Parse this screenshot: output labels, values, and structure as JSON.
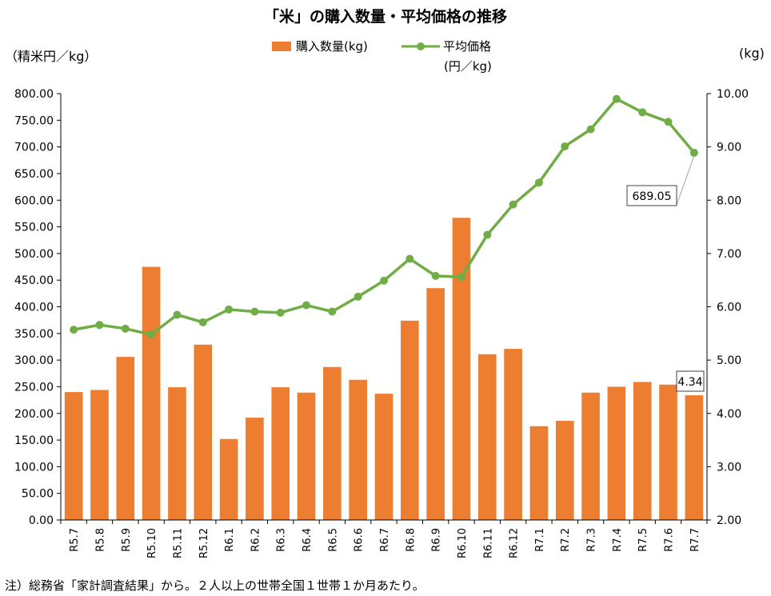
{
  "title": "「米」の購入数量・平均価格の推移",
  "left_axis_unit": "（精米円／kg）",
  "right_axis_unit": "(kg)",
  "legend": {
    "bar_label": "購入数量(kg)",
    "line_label": "平均価格",
    "line_unit": "(円／kg)"
  },
  "footnote": "注）総務省「家計調査結果」から。２人以上の世帯全国１世帯１か月あたり。",
  "colors": {
    "bar": "#ED7D31",
    "line": "#70AD47"
  },
  "chart_data": {
    "type": "bar+line",
    "categories": [
      "R5.7",
      "R5.8",
      "R5.9",
      "R5.10",
      "R5.11",
      "R5.12",
      "R6.1",
      "R6.2",
      "R6.3",
      "R6.4",
      "R6.5",
      "R6.6",
      "R6.7",
      "R6.8",
      "R6.9",
      "R6.10",
      "R6.11",
      "R6.12",
      "R7.1",
      "R7.2",
      "R7.3",
      "R7.4",
      "R7.5",
      "R7.6",
      "R7.7"
    ],
    "series": [
      {
        "name": "購入数量(kg)",
        "type": "bar",
        "axis": "right",
        "values": [
          4.4,
          4.44,
          5.06,
          6.75,
          4.49,
          5.29,
          3.52,
          3.92,
          4.49,
          4.39,
          4.87,
          4.63,
          4.37,
          5.74,
          6.35,
          7.67,
          5.11,
          5.21,
          3.76,
          3.86,
          4.39,
          4.5,
          4.59,
          4.54,
          4.34
        ]
      },
      {
        "name": "平均価格(円／kg)",
        "type": "line",
        "axis": "left",
        "values": [
          357,
          366,
          359,
          348,
          385,
          371,
          395,
          391,
          389,
          403,
          391,
          419,
          449,
          490,
          458,
          456,
          535,
          592,
          633,
          701,
          733,
          790,
          765,
          747,
          689.05
        ]
      }
    ],
    "left_axis": {
      "min": 0,
      "max": 800,
      "step": 50,
      "ticks": [
        "0.00",
        "50.00",
        "100.00",
        "150.00",
        "200.00",
        "250.00",
        "300.00",
        "350.00",
        "400.00",
        "450.00",
        "500.00",
        "550.00",
        "600.00",
        "650.00",
        "700.00",
        "750.00",
        "800.00"
      ]
    },
    "right_axis": {
      "min": 2,
      "max": 10,
      "step": 1,
      "ticks": [
        "2.00",
        "3.00",
        "4.00",
        "5.00",
        "6.00",
        "7.00",
        "8.00",
        "9.00",
        "10.00"
      ]
    },
    "annotations": {
      "price_label": "689.05",
      "qty_label": "4.34"
    },
    "grid": false
  }
}
